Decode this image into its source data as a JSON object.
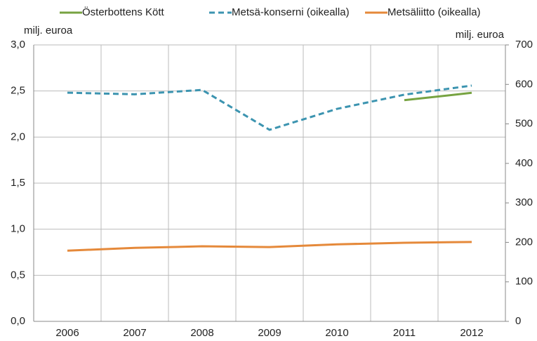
{
  "chart_data": {
    "type": "line",
    "y_unit": "milj. euroa",
    "y2_unit": "milj. euroa",
    "categories": [
      "2006",
      "2007",
      "2008",
      "2009",
      "2010",
      "2011",
      "2012"
    ],
    "series": [
      {
        "name": "Österbottens Kött",
        "color": "#77a341",
        "dashed": false,
        "axis": "y",
        "values": [
          null,
          null,
          null,
          null,
          null,
          2.4,
          2.48
        ]
      },
      {
        "name": "Metsä-konserni (oikealla)",
        "color": "#3c94b0",
        "dashed": true,
        "axis": "y2",
        "values": [
          579,
          575,
          586,
          485,
          538,
          574,
          597
        ]
      },
      {
        "name": "Metsäliitto (oikealla)",
        "color": "#e5893a",
        "dashed": false,
        "axis": "y2",
        "values": [
          179,
          186,
          190,
          188,
          195,
          199,
          201
        ]
      }
    ],
    "ylim": [
      0,
      3
    ],
    "yticks": [
      {
        "value": 0,
        "label": "0,0"
      },
      {
        "value": 0.5,
        "label": "0,5"
      },
      {
        "value": 1,
        "label": "1,0"
      },
      {
        "value": 1.5,
        "label": "1,5"
      },
      {
        "value": 2,
        "label": "2,0"
      },
      {
        "value": 2.5,
        "label": "2,5"
      },
      {
        "value": 3,
        "label": "3,0"
      }
    ],
    "y2lim": [
      0,
      700
    ],
    "y2ticks": [
      0,
      100,
      200,
      300,
      400,
      500,
      600,
      700
    ],
    "grid": true
  }
}
